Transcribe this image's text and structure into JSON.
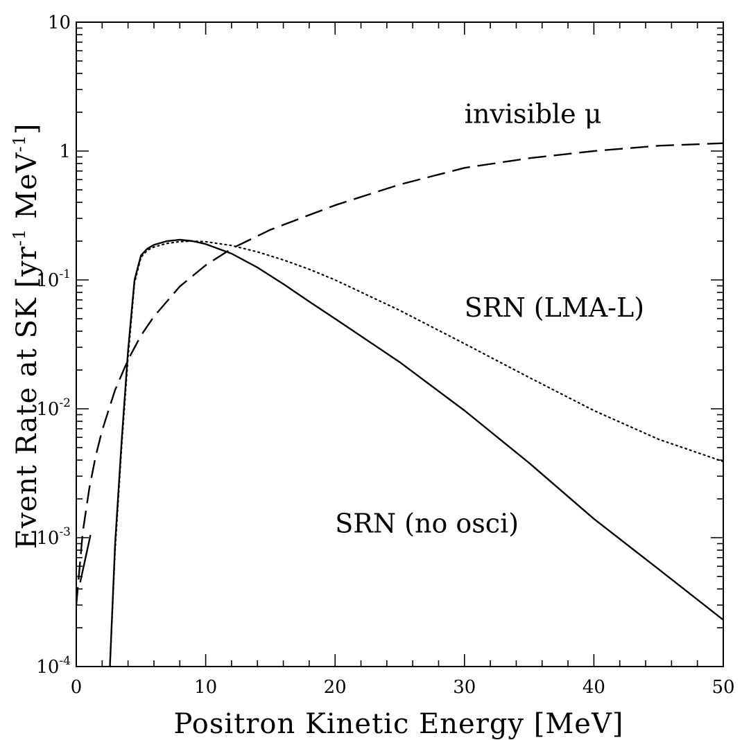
{
  "chart_data": {
    "type": "line",
    "xlabel": "Positron Kinetic Energy [MeV]",
    "ylabel": "Event Rate at SK [yr",
    "ylabel_sup1": "-1",
    "ylabel_mid": " MeV",
    "ylabel_sup2": "-1",
    "ylabel_end": "]",
    "xlim": [
      0,
      50
    ],
    "ylim": [
      0.0001,
      10
    ],
    "yscale": "log",
    "grid": false,
    "x_ticks": [
      0,
      10,
      20,
      30,
      40,
      50
    ],
    "x_tick_labels": [
      "0",
      "10",
      "20",
      "30",
      "40",
      "50"
    ],
    "y_ticks": [
      {
        "value": 0.0001,
        "base": "10",
        "exp": "-4"
      },
      {
        "value": 0.001,
        "base": "10",
        "exp": "-3"
      },
      {
        "value": 0.01,
        "base": "10",
        "exp": "-2"
      },
      {
        "value": 0.1,
        "base": "10",
        "exp": "-1"
      },
      {
        "value": 1,
        "base": "1",
        "exp": ""
      },
      {
        "value": 10,
        "base": "10",
        "exp": ""
      }
    ],
    "annotations": [
      {
        "text": "invisible μ",
        "x": 30,
        "y": 1.65
      },
      {
        "text": "SRN (LMA-L)",
        "x": 30,
        "y": 0.052
      },
      {
        "text": "SRN (no osci)",
        "x": 20,
        "y": 0.0011
      }
    ],
    "series": [
      {
        "style": "solid",
        "x": [
          2.6,
          3.0,
          3.5,
          4.0,
          4.5,
          5.0,
          5.5,
          6,
          7,
          8,
          9,
          10,
          12,
          14,
          16,
          18,
          20,
          25,
          30,
          35,
          40,
          45,
          50
        ],
        "y": [
          0.0001,
          0.0009,
          0.0055,
          0.028,
          0.1,
          0.155,
          0.175,
          0.187,
          0.2,
          0.205,
          0.2,
          0.19,
          0.16,
          0.125,
          0.093,
          0.068,
          0.05,
          0.023,
          0.0097,
          0.0038,
          0.0014,
          0.00057,
          0.00023
        ]
      },
      {
        "style": "dotted",
        "x": [
          2.6,
          3.0,
          3.5,
          4.0,
          4.5,
          5.0,
          5.5,
          6,
          7,
          8,
          9,
          10,
          12,
          14,
          16,
          18,
          20,
          25,
          30,
          35,
          40,
          45,
          50
        ],
        "y": [
          0.0001,
          0.0008,
          0.005,
          0.025,
          0.095,
          0.15,
          0.17,
          0.18,
          0.192,
          0.198,
          0.2,
          0.198,
          0.185,
          0.165,
          0.143,
          0.121,
          0.1,
          0.058,
          0.032,
          0.0175,
          0.0097,
          0.0058,
          0.0039
        ]
      },
      {
        "style": "dashed",
        "x": [
          0,
          0.5,
          1,
          1.5,
          2,
          3,
          4,
          5,
          6,
          8,
          10,
          12,
          15,
          20,
          25,
          30,
          35,
          40,
          45,
          50
        ],
        "y": [
          0.0003,
          0.0011,
          0.0024,
          0.0043,
          0.0068,
          0.014,
          0.024,
          0.037,
          0.052,
          0.089,
          0.13,
          0.175,
          0.245,
          0.38,
          0.55,
          0.74,
          0.88,
          1.0,
          1.1,
          1.15
        ]
      },
      {
        "style": "solid",
        "x": [
          0.3,
          1.1
        ],
        "y": [
          0.00045,
          0.00105
        ]
      }
    ]
  }
}
